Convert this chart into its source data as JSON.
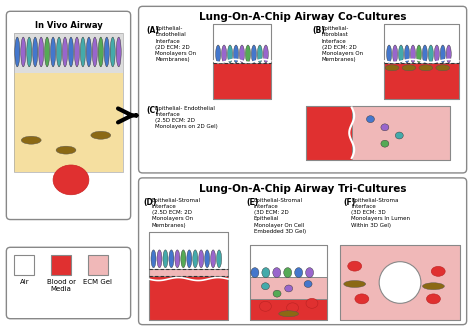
{
  "title_co": "Lung-On-A-Chip Airway Co-Cultures",
  "title_tri": "Lung-On-A-Chip Airway Tri-Cultures",
  "title_invivo": "In Vivo Airway",
  "legend_air": "Air",
  "legend_blood": "Blood or\nMedia",
  "legend_ecm": "ECM Gel",
  "label_A": "(A)",
  "label_B": "(B)",
  "label_C": "(C)",
  "label_D": "(D)",
  "label_E": "(E)",
  "label_F": "(F)",
  "text_A": "Epithelial-\nEndothelial\nInterface\n(2D ECM: 2D\nMonolayers On\nMembranes)",
  "text_B": "Epithelial-\nFibroblast\nInterface\n(2D ECM: 2D\nMonolayers On\nMembranes)",
  "text_C": "Epithelial- Endothelial\nInterface\n(2.5D ECM: 2D\nMonolayers on 2D Gel)",
  "text_D": "Epithelial-Stromal\nInterface\n(2.5D ECM: 2D\nMonolayers On\nMembranes)",
  "text_E": "Epithelial-Stromal\nInterface\n(3D ECM: 2D\nEpithelial\nMonolayer On Cell\nEmbedded 3D Gel)",
  "text_F": "Epithelial-Stroma\nInterface\n(3D ECM: 3D\nMonolayers In Lumen\nWithin 3D Gel)",
  "C_RED": "#e03030",
  "C_PINK": "#f0b8b8",
  "C_TAN": "#f5dfa0",
  "C_WHITE": "#ffffff",
  "C_BORDER": "#888888",
  "C_DARK": "#333333",
  "C_BLUE": "#4477cc",
  "C_PURPLE": "#9966cc",
  "C_TEAL": "#44aaaa",
  "C_GREEN": "#55aa55",
  "C_BROWN": "#8B6914",
  "C_LGRAY": "#cccccc",
  "C_CELLBG": "#dddddd"
}
